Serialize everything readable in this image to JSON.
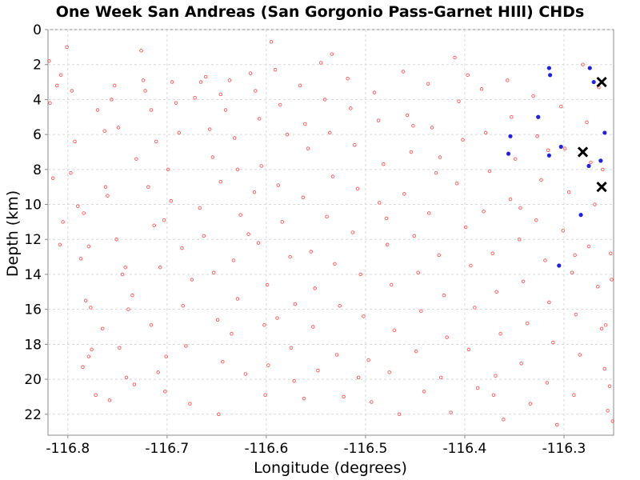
{
  "chart_data": {
    "type": "scatter",
    "title": "One Week San Andreas (San Gorgonio Pass-Garnet HIll) CHDs",
    "xlabel": "Longitude (degrees)",
    "ylabel": "Depth (km)",
    "xlim": [
      -116.82,
      -116.25
    ],
    "ylim": [
      0,
      23.2
    ],
    "y_inverted": true,
    "grid": true,
    "x_ticks": [
      {
        "value": -116.8,
        "label": "-116.8"
      },
      {
        "value": -116.7,
        "label": "-116.7"
      },
      {
        "value": -116.6,
        "label": "-116.6"
      },
      {
        "value": -116.5,
        "label": "-116.5"
      },
      {
        "value": -116.4,
        "label": "-116.4"
      },
      {
        "value": -116.3,
        "label": "-116.3"
      }
    ],
    "y_ticks": [
      {
        "value": 0,
        "label": "0"
      },
      {
        "value": 2,
        "label": "2"
      },
      {
        "value": 4,
        "label": "4"
      },
      {
        "value": 6,
        "label": "6"
      },
      {
        "value": 8,
        "label": "8"
      },
      {
        "value": 10,
        "label": "10"
      },
      {
        "value": 12,
        "label": "12"
      },
      {
        "value": 14,
        "label": "14"
      },
      {
        "value": 16,
        "label": "16"
      },
      {
        "value": 18,
        "label": "18"
      },
      {
        "value": 20,
        "label": "20"
      },
      {
        "value": 22,
        "label": "22"
      }
    ],
    "colors": {
      "background_points": "#ff5555",
      "highlight_points": "#2222dd",
      "cross_markers": "#000000",
      "grid": "#d8d8d8",
      "frame": "#888888"
    },
    "series": [
      {
        "marker": "open-circle",
        "color": "#ff5555",
        "points": [
          [
            -116.819,
            1.8
          ],
          [
            -116.818,
            4.2
          ],
          [
            -116.811,
            3.2
          ],
          [
            -116.807,
            2.6
          ],
          [
            -116.801,
            1.0
          ],
          [
            -116.796,
            3.5
          ],
          [
            -116.793,
            6.4
          ],
          [
            -116.797,
            8.2
          ],
          [
            -116.808,
            12.3
          ],
          [
            -116.815,
            8.5
          ],
          [
            -116.79,
            10.1
          ],
          [
            -116.784,
            10.5
          ],
          [
            -116.787,
            13.1
          ],
          [
            -116.779,
            12.4
          ],
          [
            -116.782,
            15.5
          ],
          [
            -116.776,
            18.3
          ],
          [
            -116.779,
            18.7
          ],
          [
            -116.772,
            20.9
          ],
          [
            -116.765,
            17.1
          ],
          [
            -116.785,
            19.3
          ],
          [
            -116.77,
            4.6
          ],
          [
            -116.763,
            5.8
          ],
          [
            -116.756,
            4.0
          ],
          [
            -116.753,
            3.2
          ],
          [
            -116.749,
            5.6
          ],
          [
            -116.762,
            9.0
          ],
          [
            -116.76,
            9.5
          ],
          [
            -116.751,
            12.0
          ],
          [
            -116.745,
            14.0
          ],
          [
            -116.742,
            13.6
          ],
          [
            -116.739,
            16.0
          ],
          [
            -116.735,
            15.2
          ],
          [
            -116.748,
            18.2
          ],
          [
            -116.741,
            19.9
          ],
          [
            -116.733,
            20.3
          ],
          [
            -116.724,
            2.9
          ],
          [
            -116.726,
            1.2
          ],
          [
            -116.722,
            3.5
          ],
          [
            -116.716,
            4.6
          ],
          [
            -116.711,
            6.4
          ],
          [
            -116.719,
            9.0
          ],
          [
            -116.713,
            11.2
          ],
          [
            -116.707,
            13.6
          ],
          [
            -116.716,
            16.9
          ],
          [
            -116.701,
            18.7
          ],
          [
            -116.709,
            19.6
          ],
          [
            -116.702,
            20.7
          ],
          [
            -116.695,
            3.0
          ],
          [
            -116.691,
            4.2
          ],
          [
            -116.688,
            5.9
          ],
          [
            -116.699,
            8.0
          ],
          [
            -116.696,
            9.8
          ],
          [
            -116.685,
            12.5
          ],
          [
            -116.684,
            15.8
          ],
          [
            -116.681,
            18.1
          ],
          [
            -116.677,
            21.4
          ],
          [
            -116.672,
            3.9
          ],
          [
            -116.666,
            3.0
          ],
          [
            -116.661,
            2.7
          ],
          [
            -116.657,
            5.7
          ],
          [
            -116.654,
            7.3
          ],
          [
            -116.667,
            10.2
          ],
          [
            -116.663,
            11.8
          ],
          [
            -116.653,
            13.9
          ],
          [
            -116.649,
            16.6
          ],
          [
            -116.644,
            19.0
          ],
          [
            -116.648,
            22.0
          ],
          [
            -116.646,
            3.7
          ],
          [
            -116.641,
            4.6
          ],
          [
            -116.637,
            2.9
          ],
          [
            -116.632,
            6.2
          ],
          [
            -116.629,
            8.0
          ],
          [
            -116.626,
            10.6
          ],
          [
            -116.633,
            13.2
          ],
          [
            -116.629,
            15.4
          ],
          [
            -116.635,
            17.4
          ],
          [
            -116.621,
            19.7
          ],
          [
            -116.616,
            2.5
          ],
          [
            -116.611,
            3.5
          ],
          [
            -116.607,
            5.1
          ],
          [
            -116.605,
            7.8
          ],
          [
            -116.612,
            9.3
          ],
          [
            -116.608,
            12.2
          ],
          [
            -116.599,
            14.6
          ],
          [
            -116.602,
            16.9
          ],
          [
            -116.598,
            19.2
          ],
          [
            -116.601,
            20.9
          ],
          [
            -116.595,
            0.7
          ],
          [
            -116.591,
            2.3
          ],
          [
            -116.586,
            4.3
          ],
          [
            -116.579,
            6.0
          ],
          [
            -116.588,
            8.9
          ],
          [
            -116.584,
            11.0
          ],
          [
            -116.576,
            13.0
          ],
          [
            -116.571,
            15.7
          ],
          [
            -116.575,
            18.2
          ],
          [
            -116.572,
            20.1
          ],
          [
            -116.566,
            3.2
          ],
          [
            -116.561,
            5.4
          ],
          [
            -116.558,
            6.8
          ],
          [
            -116.563,
            9.6
          ],
          [
            -116.555,
            12.7
          ],
          [
            -116.551,
            14.8
          ],
          [
            -116.553,
            17.0
          ],
          [
            -116.548,
            19.5
          ],
          [
            -116.545,
            1.9
          ],
          [
            -116.541,
            4.0
          ],
          [
            -116.536,
            5.9
          ],
          [
            -116.533,
            8.4
          ],
          [
            -116.539,
            10.7
          ],
          [
            -116.531,
            13.4
          ],
          [
            -116.526,
            15.8
          ],
          [
            -116.529,
            18.6
          ],
          [
            -116.522,
            21.0
          ],
          [
            -116.518,
            2.8
          ],
          [
            -116.515,
            4.5
          ],
          [
            -116.511,
            6.6
          ],
          [
            -116.508,
            9.1
          ],
          [
            -116.513,
            11.6
          ],
          [
            -116.505,
            14.0
          ],
          [
            -116.502,
            16.4
          ],
          [
            -116.497,
            18.9
          ],
          [
            -116.494,
            21.3
          ],
          [
            -116.491,
            3.6
          ],
          [
            -116.487,
            5.2
          ],
          [
            -116.482,
            7.7
          ],
          [
            -116.486,
            9.9
          ],
          [
            -116.478,
            12.3
          ],
          [
            -116.474,
            14.6
          ],
          [
            -116.471,
            17.2
          ],
          [
            -116.476,
            19.6
          ],
          [
            -116.466,
            22.0
          ],
          [
            -116.462,
            2.4
          ],
          [
            -116.458,
            4.9
          ],
          [
            -116.454,
            7.0
          ],
          [
            -116.461,
            9.4
          ],
          [
            -116.451,
            11.8
          ],
          [
            -116.447,
            13.9
          ],
          [
            -116.444,
            16.1
          ],
          [
            -116.449,
            18.4
          ],
          [
            -116.441,
            20.7
          ],
          [
            -116.437,
            3.1
          ],
          [
            -116.433,
            5.6
          ],
          [
            -116.429,
            8.2
          ],
          [
            -116.436,
            10.5
          ],
          [
            -116.426,
            12.9
          ],
          [
            -116.421,
            15.2
          ],
          [
            -116.418,
            17.6
          ],
          [
            -116.424,
            19.9
          ],
          [
            -116.414,
            21.9
          ],
          [
            -116.41,
            1.6
          ],
          [
            -116.406,
            4.1
          ],
          [
            -116.402,
            6.3
          ],
          [
            -116.408,
            8.8
          ],
          [
            -116.399,
            11.3
          ],
          [
            -116.394,
            13.5
          ],
          [
            -116.39,
            15.9
          ],
          [
            -116.396,
            18.3
          ],
          [
            -116.387,
            20.5
          ],
          [
            -116.383,
            3.4
          ],
          [
            -116.379,
            5.9
          ],
          [
            -116.375,
            8.1
          ],
          [
            -116.381,
            10.4
          ],
          [
            -116.372,
            12.8
          ],
          [
            -116.368,
            15.0
          ],
          [
            -116.364,
            17.4
          ],
          [
            -116.369,
            19.8
          ],
          [
            -116.361,
            22.3
          ],
          [
            -116.357,
            2.9
          ],
          [
            -116.353,
            5.0
          ],
          [
            -116.349,
            7.4
          ],
          [
            -116.354,
            9.7
          ],
          [
            -116.345,
            12.0
          ],
          [
            -116.341,
            14.4
          ],
          [
            -116.337,
            16.8
          ],
          [
            -116.343,
            19.1
          ],
          [
            -116.334,
            21.4
          ],
          [
            -116.331,
            3.8
          ],
          [
            -116.327,
            6.1
          ],
          [
            -116.323,
            8.6
          ],
          [
            -116.328,
            10.9
          ],
          [
            -116.319,
            13.2
          ],
          [
            -116.315,
            15.6
          ],
          [
            -116.311,
            17.9
          ],
          [
            -116.317,
            20.2
          ],
          [
            -116.307,
            22.6
          ],
          [
            -116.303,
            4.4
          ],
          [
            -116.299,
            6.8
          ],
          [
            -116.295,
            9.3
          ],
          [
            -116.301,
            11.5
          ],
          [
            -116.292,
            13.9
          ],
          [
            -116.288,
            16.3
          ],
          [
            -116.284,
            18.6
          ],
          [
            -116.29,
            20.9
          ],
          [
            -116.281,
            2.0
          ],
          [
            -116.277,
            5.3
          ],
          [
            -116.273,
            7.6
          ],
          [
            -116.269,
            10.0
          ],
          [
            -116.275,
            12.4
          ],
          [
            -116.266,
            14.7
          ],
          [
            -116.262,
            17.1
          ],
          [
            -116.259,
            19.4
          ],
          [
            -116.256,
            21.8
          ],
          [
            -116.265,
            3.3
          ],
          [
            -116.261,
            8.0
          ],
          [
            -116.253,
            12.8
          ],
          [
            -116.252,
            14.3
          ],
          [
            -116.258,
            16.9
          ],
          [
            -116.254,
            20.4
          ],
          [
            -116.251,
            22.4
          ],
          [
            -116.805,
            11.0
          ],
          [
            -116.777,
            15.9
          ],
          [
            -116.758,
            21.2
          ],
          [
            -116.731,
            7.4
          ],
          [
            -116.703,
            10.9
          ],
          [
            -116.675,
            14.3
          ],
          [
            -116.646,
            8.7
          ],
          [
            -116.618,
            11.7
          ],
          [
            -116.589,
            16.5
          ],
          [
            -116.562,
            21.1
          ],
          [
            -116.534,
            1.4
          ],
          [
            -116.507,
            19.9
          ],
          [
            -116.479,
            10.8
          ],
          [
            -116.452,
            5.5
          ],
          [
            -116.425,
            7.3
          ],
          [
            -116.397,
            2.6
          ],
          [
            -116.371,
            20.9
          ],
          [
            -116.344,
            10.2
          ],
          [
            -116.316,
            6.9
          ],
          [
            -116.289,
            12.9
          ]
        ]
      },
      {
        "marker": "filled-circle",
        "color": "#2222dd",
        "points": [
          [
            -116.315,
            2.2
          ],
          [
            -116.314,
            2.6
          ],
          [
            -116.326,
            5.0
          ],
          [
            -116.303,
            6.7
          ],
          [
            -116.315,
            7.2
          ],
          [
            -116.354,
            6.1
          ],
          [
            -116.356,
            7.1
          ],
          [
            -116.274,
            2.2
          ],
          [
            -116.27,
            3.0
          ],
          [
            -116.259,
            5.9
          ],
          [
            -116.263,
            7.5
          ],
          [
            -116.275,
            7.8
          ],
          [
            -116.283,
            10.6
          ],
          [
            -116.305,
            13.5
          ]
        ]
      },
      {
        "marker": "cross",
        "color": "#000000",
        "points": [
          [
            -116.262,
            3.0
          ],
          [
            -116.281,
            7.0
          ],
          [
            -116.262,
            9.0
          ]
        ]
      }
    ]
  }
}
